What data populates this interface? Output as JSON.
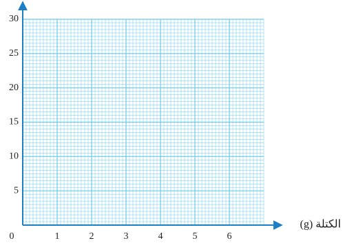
{
  "chart_data": {
    "type": "line",
    "x_label": "الكتلة (g)",
    "xlim": [
      0,
      7
    ],
    "xticks": [
      0,
      1,
      2,
      3,
      4,
      5,
      6
    ],
    "ylim": [
      0,
      30
    ],
    "yticks": [
      5,
      10,
      15,
      20,
      25,
      30
    ],
    "grid": true,
    "grid_color": "#6cc8ec",
    "axis_color": "#1b7fc7",
    "series": []
  }
}
